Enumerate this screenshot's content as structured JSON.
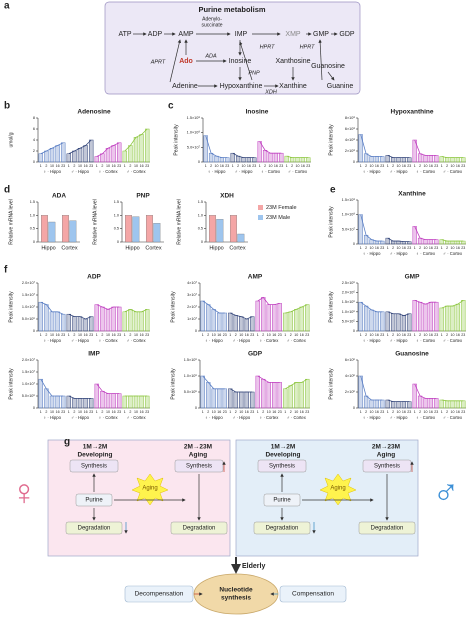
{
  "panel_letters": [
    "a",
    "b",
    "c",
    "d",
    "e",
    "f",
    "g"
  ],
  "panel_a": {
    "title": "Purine metabolism",
    "nodes": [
      "ATP",
      "ADP",
      "AMP",
      "IMP",
      "XMP",
      "GMP",
      "GDP",
      "Ado",
      "Inosine",
      "Xanthosine",
      "Guanosine",
      "Adenine",
      "Hypoxanthine",
      "Xanthine",
      "Guanine"
    ],
    "adenylosuccinate": [
      "Adenylo-",
      "succinate"
    ],
    "enzymes": [
      "APRT",
      "ADA",
      "PNP",
      "XDH",
      "HPRT",
      "HPRT"
    ]
  },
  "chart_data": [
    {
      "type": "bar",
      "title": "Adenosine",
      "ylabel": "umol/g",
      "categories": [
        "1",
        "2",
        "10",
        "16",
        "23"
      ],
      "ylim": [
        0,
        8
      ],
      "yticks": [
        0,
        2,
        4,
        6,
        8
      ],
      "series": [
        {
          "name": "♀ · Hippo",
          "color": "#5b7fc4",
          "values": [
            1.5,
            2,
            2.5,
            3,
            3.5
          ]
        },
        {
          "name": "♂ · Hippo",
          "color": "#34467a",
          "values": [
            1.5,
            2,
            2.5,
            3,
            4
          ]
        },
        {
          "name": "♀ · Cortex",
          "color": "#c040c0",
          "values": [
            1,
            1.5,
            2.5,
            3,
            3.5
          ]
        },
        {
          "name": "♂ · Cortex",
          "color": "#8cc63f",
          "values": [
            2,
            3,
            4.5,
            5,
            6
          ]
        }
      ]
    },
    {
      "type": "bar",
      "title": "Inosine",
      "ylabel": "Peak intensity",
      "categories": [
        "1",
        "2",
        "10",
        "16",
        "23"
      ],
      "ylim": [
        0,
        150000000
      ],
      "yticks": [
        0,
        {
          "value": 50000000,
          "label": "5.0×10⁷"
        },
        {
          "value": 100000000,
          "label": "1.0×10⁸"
        },
        {
          "value": 150000000,
          "label": "1.5×10⁸"
        }
      ],
      "series": [
        {
          "name": "♀ · Hippo",
          "color": "#5b7fc4",
          "values": [
            90000000,
            30000000,
            20000000,
            15000000,
            15000000
          ]
        },
        {
          "name": "♂ · Hippo",
          "color": "#34467a",
          "values": [
            30000000,
            20000000,
            15000000,
            15000000,
            15000000
          ]
        },
        {
          "name": "♀ · Cortex",
          "color": "#c040c0",
          "values": [
            70000000,
            40000000,
            30000000,
            30000000,
            30000000
          ]
        },
        {
          "name": "♂ · Cortex",
          "color": "#8cc63f",
          "values": [
            20000000,
            15000000,
            15000000,
            15000000,
            15000000
          ]
        }
      ]
    },
    {
      "type": "bar",
      "title": "Hypoxanthine",
      "ylabel": "Peak intensity",
      "categories": [
        "1",
        "2",
        "10",
        "16",
        "23"
      ],
      "ylim": [
        0,
        800000000
      ],
      "yticks": [
        0,
        {
          "value": 200000000,
          "label": "2×10⁸"
        },
        {
          "value": 400000000,
          "label": "4×10⁸"
        },
        {
          "value": 600000000,
          "label": "6×10⁸"
        },
        {
          "value": 800000000,
          "label": "8×10⁸"
        }
      ],
      "series": [
        {
          "name": "♀ · Hippo",
          "color": "#5b7fc4",
          "values": [
            500000000,
            150000000,
            100000000,
            100000000,
            100000000
          ]
        },
        {
          "name": "♂ · Hippo",
          "color": "#34467a",
          "values": [
            120000000,
            80000000,
            80000000,
            80000000,
            80000000
          ]
        },
        {
          "name": "♀ · Cortex",
          "color": "#c040c0",
          "values": [
            400000000,
            150000000,
            120000000,
            120000000,
            120000000
          ]
        },
        {
          "name": "♂ · Cortex",
          "color": "#8cc63f",
          "values": [
            100000000,
            80000000,
            80000000,
            80000000,
            80000000
          ]
        }
      ]
    },
    {
      "type": "grouped",
      "title": "ADA",
      "ylabel": "Relative mRNA level",
      "categories": [
        "Hippo",
        "Cortex"
      ],
      "ylim": [
        0,
        1.5
      ],
      "yticks": [
        0,
        0.5,
        {
          "value": 1,
          "label": "1.0"
        },
        1.5
      ],
      "series": [
        {
          "color": "#f4a6a6",
          "values": [
            1.0,
            1.0
          ]
        },
        {
          "color": "#9ec5ee",
          "values": [
            0.75,
            0.8
          ]
        }
      ]
    },
    {
      "type": "grouped",
      "title": "PNP",
      "ylabel": "Relative mRNA level",
      "categories": [
        "Hippo",
        "Cortex"
      ],
      "ylim": [
        0,
        1.5
      ],
      "yticks": [
        0,
        0.5,
        {
          "value": 1,
          "label": "1.0"
        },
        1.5
      ],
      "series": [
        {
          "color": "#f4a6a6",
          "values": [
            1.0,
            1.0
          ]
        },
        {
          "color": "#9ec5ee",
          "values": [
            0.95,
            0.7
          ]
        }
      ]
    },
    {
      "type": "grouped",
      "title": "XDH",
      "ylabel": "Relative mRNA level",
      "categories": [
        "Hippo",
        "Cortex"
      ],
      "ylim": [
        0,
        1.5
      ],
      "yticks": [
        0,
        0.5,
        {
          "value": 1,
          "label": "1.0"
        },
        1.5
      ],
      "series": [
        {
          "name": "23M Female",
          "color": "#f4a6a6",
          "values": [
            1.0,
            1.0
          ]
        },
        {
          "name": "23M Male",
          "color": "#9ec5ee",
          "values": [
            0.85,
            0.3
          ]
        }
      ]
    },
    {
      "type": "bar",
      "title": "Xanthine",
      "ylabel": "Peak intensity",
      "categories": [
        "1",
        "2",
        "10",
        "16",
        "23"
      ],
      "ylim": [
        0,
        150000000
      ],
      "yticks": [
        0,
        {
          "value": 50000000,
          "label": "5.0×10⁷"
        },
        {
          "value": 100000000,
          "label": "1.0×10⁸"
        },
        {
          "value": 150000000,
          "label": "1.5×10⁸"
        }
      ],
      "series": [
        {
          "name": "♀ · Hippo",
          "color": "#5b7fc4",
          "values": [
            100000000,
            30000000,
            15000000,
            10000000,
            10000000
          ]
        },
        {
          "name": "♂ · Hippo",
          "color": "#34467a",
          "values": [
            20000000,
            10000000,
            10000000,
            8000000,
            8000000
          ]
        },
        {
          "name": "♀ · Cortex",
          "color": "#c040c0",
          "values": [
            60000000,
            20000000,
            15000000,
            15000000,
            15000000
          ]
        },
        {
          "name": "♂ · Cortex",
          "color": "#8cc63f",
          "values": [
            15000000,
            10000000,
            10000000,
            10000000,
            10000000
          ]
        }
      ]
    },
    {
      "type": "bar",
      "title": "ADP",
      "ylabel": "Peak intensity",
      "categories": [
        "1",
        "2",
        "10",
        "16",
        "23"
      ],
      "ylim": [
        0,
        20000000
      ],
      "yticks": [
        0,
        {
          "value": 5000000,
          "label": "5.0×10⁶"
        },
        {
          "value": 10000000,
          "label": "1.0×10⁷"
        },
        {
          "value": 15000000,
          "label": "1.5×10⁷"
        },
        {
          "value": 20000000,
          "label": "2.0×10⁷"
        }
      ],
      "series": [
        {
          "name": "♀ · Hippo",
          "color": "#5b7fc4",
          "values": [
            12000000,
            11000000,
            8000000,
            8000000,
            7000000
          ]
        },
        {
          "name": "♂ · Hippo",
          "color": "#34467a",
          "values": [
            7000000,
            6000000,
            6000000,
            5000000,
            6000000
          ]
        },
        {
          "name": "♀ · Cortex",
          "color": "#c040c0",
          "values": [
            11000000,
            10000000,
            9000000,
            10000000,
            10000000
          ]
        },
        {
          "name": "♂ · Cortex",
          "color": "#8cc63f",
          "values": [
            8000000,
            9000000,
            8000000,
            8000000,
            9000000
          ]
        }
      ]
    },
    {
      "type": "bar",
      "title": "AMP",
      "ylabel": "Peak intensity",
      "categories": [
        "1",
        "2",
        "10",
        "16",
        "23"
      ],
      "ylim": [
        0,
        40000000
      ],
      "yticks": [
        0,
        {
          "value": 10000000,
          "label": "1×10⁷"
        },
        {
          "value": 20000000,
          "label": "2×10⁷"
        },
        {
          "value": 30000000,
          "label": "3×10⁷"
        },
        {
          "value": 40000000,
          "label": "4×10⁷"
        }
      ],
      "series": [
        {
          "name": "♀ · Hippo",
          "color": "#5b7fc4",
          "values": [
            25000000,
            22000000,
            18000000,
            15000000,
            15000000
          ]
        },
        {
          "name": "♂ · Hippo",
          "color": "#34467a",
          "values": [
            15000000,
            13000000,
            12000000,
            10000000,
            12000000
          ]
        },
        {
          "name": "♀ · Cortex",
          "color": "#c040c0",
          "values": [
            25000000,
            28000000,
            22000000,
            22000000,
            23000000
          ]
        },
        {
          "name": "♂ · Cortex",
          "color": "#8cc63f",
          "values": [
            15000000,
            16000000,
            18000000,
            20000000,
            22000000
          ]
        }
      ]
    },
    {
      "type": "bar",
      "title": "GMP",
      "ylabel": "Peak intensity",
      "categories": [
        "1",
        "2",
        "10",
        "16",
        "23"
      ],
      "ylim": [
        0,
        2500000
      ],
      "yticks": [
        0,
        {
          "value": 500000,
          "label": "5.0×10⁵"
        },
        {
          "value": 1000000,
          "label": "1.0×10⁶"
        },
        {
          "value": 1500000,
          "label": "1.5×10⁶"
        },
        {
          "value": 2000000,
          "label": "2.0×10⁶"
        },
        {
          "value": 2500000,
          "label": "2.5×10⁶"
        }
      ],
      "series": [
        {
          "name": "♀ · Hippo",
          "color": "#5b7fc4",
          "values": [
            1500000,
            1300000,
            1100000,
            1000000,
            1000000
          ]
        },
        {
          "name": "♂ · Hippo",
          "color": "#34467a",
          "values": [
            1000000,
            900000,
            900000,
            800000,
            900000
          ]
        },
        {
          "name": "♀ · Cortex",
          "color": "#c040c0",
          "values": [
            1600000,
            1500000,
            1400000,
            1500000,
            1500000
          ]
        },
        {
          "name": "♂ · Cortex",
          "color": "#8cc63f",
          "values": [
            1200000,
            1300000,
            1300000,
            1400000,
            1600000
          ]
        }
      ]
    },
    {
      "type": "bar",
      "title": "IMP",
      "ylabel": "Peak intensity",
      "categories": [
        "1",
        "2",
        "10",
        "16",
        "23"
      ],
      "ylim": [
        0,
        20000000
      ],
      "yticks": [
        0,
        {
          "value": 5000000,
          "label": "5.0×10⁶"
        },
        {
          "value": 10000000,
          "label": "1.0×10⁷"
        },
        {
          "value": 15000000,
          "label": "1.5×10⁷"
        },
        {
          "value": 20000000,
          "label": "2.0×10⁷"
        }
      ],
      "series": [
        {
          "name": "♀ · Hippo",
          "color": "#5b7fc4",
          "values": [
            12000000,
            8000000,
            5000000,
            5000000,
            5000000
          ]
        },
        {
          "name": "♂ · Hippo",
          "color": "#34467a",
          "values": [
            5000000,
            4000000,
            4000000,
            4000000,
            4000000
          ]
        },
        {
          "name": "♀ · Cortex",
          "color": "#c040c0",
          "values": [
            10000000,
            7000000,
            6000000,
            6000000,
            6000000
          ]
        },
        {
          "name": "♂ · Cortex",
          "color": "#8cc63f",
          "values": [
            5000000,
            5000000,
            5000000,
            5000000,
            5000000
          ]
        }
      ]
    },
    {
      "type": "bar",
      "title": "GDP",
      "ylabel": "Peak intensity",
      "categories": [
        "1",
        "2",
        "10",
        "16",
        "23"
      ],
      "ylim": [
        0,
        1500000
      ],
      "yticks": [
        0,
        {
          "value": 500000,
          "label": "5.0×10⁵"
        },
        {
          "value": 1000000,
          "label": "1.0×10⁶"
        },
        {
          "value": 1500000,
          "label": "1.5×10⁶"
        }
      ],
      "series": [
        {
          "name": "♀ · Hippo",
          "color": "#5b7fc4",
          "values": [
            1000000,
            800000,
            600000,
            600000,
            600000
          ]
        },
        {
          "name": "♂ · Hippo",
          "color": "#34467a",
          "values": [
            600000,
            500000,
            500000,
            500000,
            500000
          ]
        },
        {
          "name": "♀ · Cortex",
          "color": "#c040c0",
          "values": [
            1000000,
            900000,
            800000,
            800000,
            800000
          ]
        },
        {
          "name": "♂ · Cortex",
          "color": "#8cc63f",
          "values": [
            600000,
            700000,
            800000,
            800000,
            900000
          ]
        }
      ]
    },
    {
      "type": "bar",
      "title": "Guanosine",
      "ylabel": "Peak intensity",
      "categories": [
        "1",
        "2",
        "10",
        "16",
        "23"
      ],
      "ylim": [
        0,
        6000000
      ],
      "yticks": [
        0,
        {
          "value": 2000000,
          "label": "2×10⁶"
        },
        {
          "value": 4000000,
          "label": "4×10⁶"
        },
        {
          "value": 6000000,
          "label": "6×10⁶"
        }
      ],
      "series": [
        {
          "name": "♀ · Hippo",
          "color": "#5b7fc4",
          "values": [
            4000000,
            1500000,
            1000000,
            1000000,
            1000000
          ]
        },
        {
          "name": "♂ · Hippo",
          "color": "#34467a",
          "values": [
            1000000,
            800000,
            800000,
            800000,
            800000
          ]
        },
        {
          "name": "♀ · Cortex",
          "color": "#c040c0",
          "values": [
            3000000,
            1500000,
            1200000,
            1200000,
            1200000
          ]
        },
        {
          "name": "♂ · Cortex",
          "color": "#8cc63f",
          "values": [
            1000000,
            900000,
            900000,
            900000,
            900000
          ]
        }
      ]
    }
  ],
  "panel_g": {
    "female_symbol": "♀",
    "male_symbol": "♂",
    "sides": [
      {
        "period1": "1M→2M",
        "stage1": "Developing",
        "period2": "2M→23M",
        "stage2": "Aging",
        "synthesis": [
          "Synthesis",
          "Synthesis"
        ],
        "purine": "Purine",
        "degradation": [
          "Degradation",
          "Degradation"
        ],
        "star": "Aging"
      },
      {
        "period1": "1M→2M",
        "stage1": "Developing",
        "period2": "2M→23M",
        "stage2": "Aging",
        "synthesis": [
          "Synthesis",
          "Synthesis"
        ],
        "purine": "Purine",
        "degradation": [
          "Degradation",
          "Degradation"
        ],
        "star": "Aging"
      }
    ],
    "elderly": "Elderly",
    "decompensation": "Decompensation",
    "center": [
      "Nucleotide",
      "synthesis"
    ],
    "compensation": "Compensation"
  }
}
